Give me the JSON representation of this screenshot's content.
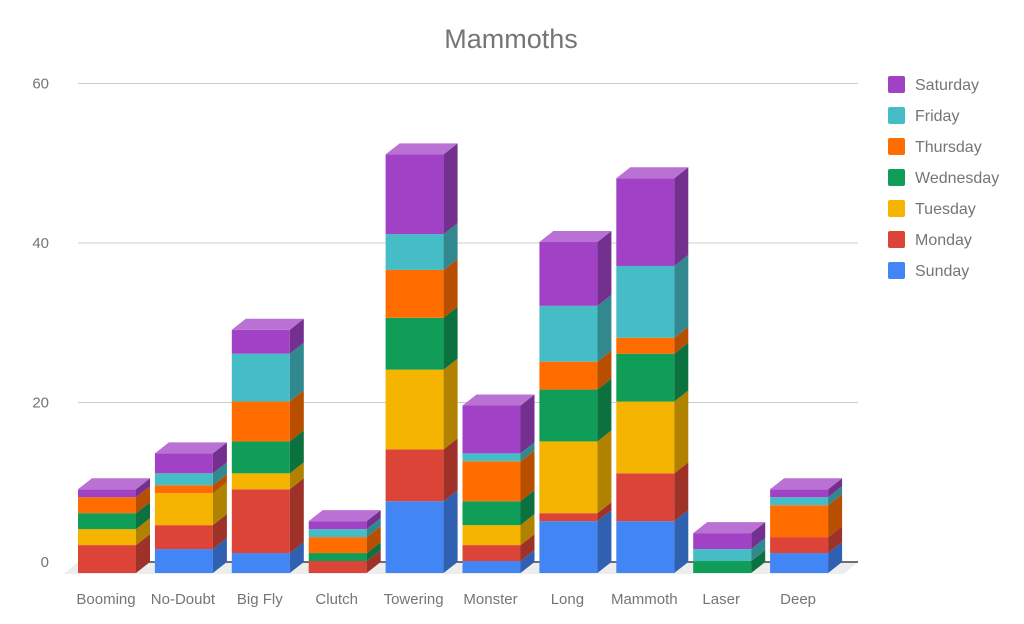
{
  "title": "Mammoths",
  "chart_data": {
    "type": "bar",
    "stacked": true,
    "effect_3d": true,
    "title": "Mammoths",
    "categories": [
      "Booming",
      "No-Doubt",
      "Big Fly",
      "Clutch",
      "Towering",
      "Monster",
      "Long",
      "Mammoth",
      "Laser",
      "Deep"
    ],
    "series": [
      {
        "name": "Sunday",
        "color": "#4285F4",
        "values": [
          0,
          3,
          2.5,
          0,
          9,
          1.5,
          6.5,
          6.5,
          0,
          2.5
        ]
      },
      {
        "name": "Monday",
        "color": "#DB4437",
        "values": [
          3.5,
          3,
          8,
          1.5,
          6.5,
          2,
          1,
          6,
          0,
          2
        ]
      },
      {
        "name": "Tuesday",
        "color": "#F4B400",
        "values": [
          2,
          4,
          2,
          0,
          10,
          2.5,
          9,
          9,
          0,
          0
        ]
      },
      {
        "name": "Wednesday",
        "color": "#0F9D58",
        "values": [
          2,
          0,
          4,
          1,
          6.5,
          3,
          6.5,
          6,
          1.5,
          0
        ]
      },
      {
        "name": "Thursday",
        "color": "#FF6D00",
        "values": [
          2,
          1,
          5,
          2,
          6,
          5,
          3.5,
          2,
          0,
          4
        ]
      },
      {
        "name": "Friday",
        "color": "#46BDC6",
        "values": [
          0,
          1.5,
          6,
          1,
          4.5,
          1,
          7,
          9,
          1.5,
          1
        ]
      },
      {
        "name": "Saturday",
        "color": "#A142C6",
        "values": [
          1,
          2.5,
          3,
          1,
          10,
          6,
          8,
          11,
          2,
          1
        ]
      }
    ],
    "totals": [
      10.5,
      15,
      30.5,
      6.5,
      52.5,
      21,
      41.5,
      49.5,
      5,
      10.5
    ],
    "y_ticks": [
      0,
      20,
      40,
      60
    ],
    "ylim": [
      0,
      60
    ],
    "grid": true,
    "legend_position": "right",
    "legend_order_top_to_bottom": [
      "Saturday",
      "Friday",
      "Thursday",
      "Wednesday",
      "Tuesday",
      "Monday",
      "Sunday"
    ],
    "colors": {
      "text": "#757575",
      "grid": "#cccccc",
      "axis_line": "#424242",
      "floor": "#ededed",
      "background": "#ffffff"
    }
  }
}
